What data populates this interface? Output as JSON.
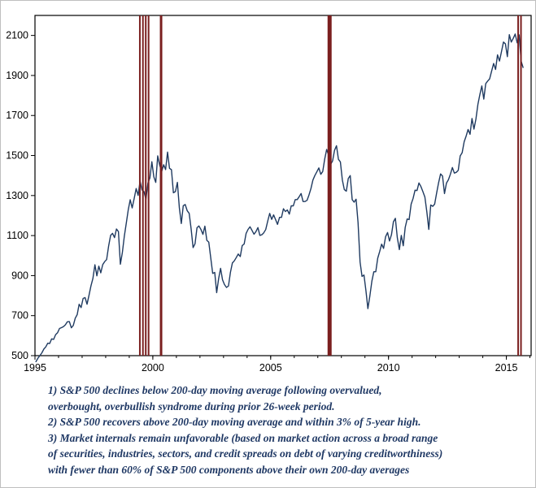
{
  "chart_data": {
    "type": "line",
    "title": "",
    "xlabel": "",
    "ylabel": "",
    "grid": false,
    "legend": "none",
    "xlim": [
      1995,
      2016.05
    ],
    "ylim": [
      500,
      2200
    ],
    "y_ticks": [
      500,
      700,
      900,
      1100,
      1300,
      1500,
      1700,
      1900,
      2100
    ],
    "x_tick_years": [
      1995,
      2000,
      2005,
      2010,
      2015
    ],
    "x_tick_labels": [
      "1995",
      "2000",
      "2005",
      "2010",
      "2015"
    ],
    "x_start_year": 1995,
    "series": [
      {
        "name": "S&P 500 Index",
        "color": "#1f3a60",
        "monthly_values": [
          470,
          487,
          500,
          514,
          533,
          544,
          562,
          561,
          584,
          581,
          605,
          615,
          636,
          640,
          645,
          654,
          669,
          670,
          639,
          651,
          687,
          705,
          757,
          740,
          786,
          790,
          757,
          801,
          848,
          885,
          954,
          899,
          947,
          914,
          955,
          970,
          980,
          1049,
          1101,
          1111,
          1090,
          1133,
          1120,
          957,
          1017,
          1098,
          1163,
          1229,
          1279,
          1238,
          1286,
          1335,
          1301,
          1372,
          1328,
          1320,
          1282,
          1362,
          1388,
          1469,
          1394,
          1366,
          1498,
          1452,
          1420,
          1454,
          1430,
          1517,
          1436,
          1429,
          1314,
          1320,
          1366,
          1239,
          1160,
          1249,
          1255,
          1224,
          1211,
          1133,
          1040,
          1059,
          1139,
          1148,
          1130,
          1106,
          1147,
          1076,
          1067,
          989,
          911,
          916,
          815,
          885,
          936,
          879,
          855,
          841,
          848,
          916,
          963,
          974,
          990,
          1008,
          995,
          1050,
          1058,
          1111,
          1131,
          1144,
          1126,
          1107,
          1120,
          1140,
          1101,
          1104,
          1114,
          1130,
          1173,
          1211,
          1181,
          1203,
          1180,
          1156,
          1191,
          1191,
          1234,
          1220,
          1228,
          1207,
          1249,
          1248,
          1280,
          1280,
          1294,
          1310,
          1270,
          1270,
          1276,
          1303,
          1335,
          1377,
          1400,
          1418,
          1438,
          1406,
          1420,
          1482,
          1530,
          1503,
          1455,
          1473,
          1526,
          1549,
          1481,
          1468,
          1378,
          1330,
          1322,
          1385,
          1400,
          1280,
          1267,
          1282,
          1166,
          968,
          896,
          903,
          825,
          735,
          797,
          872,
          919,
          919,
          987,
          1020,
          1057,
          1036,
          1095,
          1115,
          1073,
          1104,
          1169,
          1186,
          1089,
          1030,
          1101,
          1049,
          1141,
          1183,
          1180,
          1257,
          1286,
          1327,
          1325,
          1363,
          1345,
          1320,
          1292,
          1218,
          1131,
          1253,
          1246,
          1257,
          1312,
          1365,
          1408,
          1397,
          1310,
          1362,
          1379,
          1406,
          1440,
          1412,
          1416,
          1426,
          1498,
          1514,
          1569,
          1597,
          1630,
          1606,
          1685,
          1632,
          1681,
          1756,
          1805,
          1848,
          1782,
          1859,
          1872,
          1883,
          1923,
          1960,
          1930,
          2003,
          1972,
          2018,
          2067,
          2058,
          1994,
          2104,
          2067,
          2085,
          2107,
          2063,
          2103,
          1972,
          1940
        ]
      }
    ],
    "signal_lines": {
      "color": "#7a1f1f",
      "events": [
        {
          "year": 1999.45,
          "width": 2
        },
        {
          "year": 1999.58,
          "width": 2
        },
        {
          "year": 1999.7,
          "width": 2
        },
        {
          "year": 1999.82,
          "width": 2
        },
        {
          "year": 2000.35,
          "width": 3
        },
        {
          "year": 2007.5,
          "width": 5
        },
        {
          "year": 2015.5,
          "width": 2
        },
        {
          "year": 2015.62,
          "width": 2
        }
      ]
    }
  },
  "annotation": {
    "color": "#1f3864",
    "lines": [
      "1) S&P 500 declines below 200-day moving average following overvalued,",
      "overbought, overbullish syndrome during prior 26-week period.",
      "2) S&P 500 recovers above 200-day moving average and within 3% of 5-year high.",
      "3) Market internals remain unfavorable (based on market action across a broad range",
      "of securities, industries, sectors, and credit spreads on debt of varying creditworthiness)",
      "with fewer than 60% of S&P 500 components above their own 200-day averages"
    ]
  }
}
